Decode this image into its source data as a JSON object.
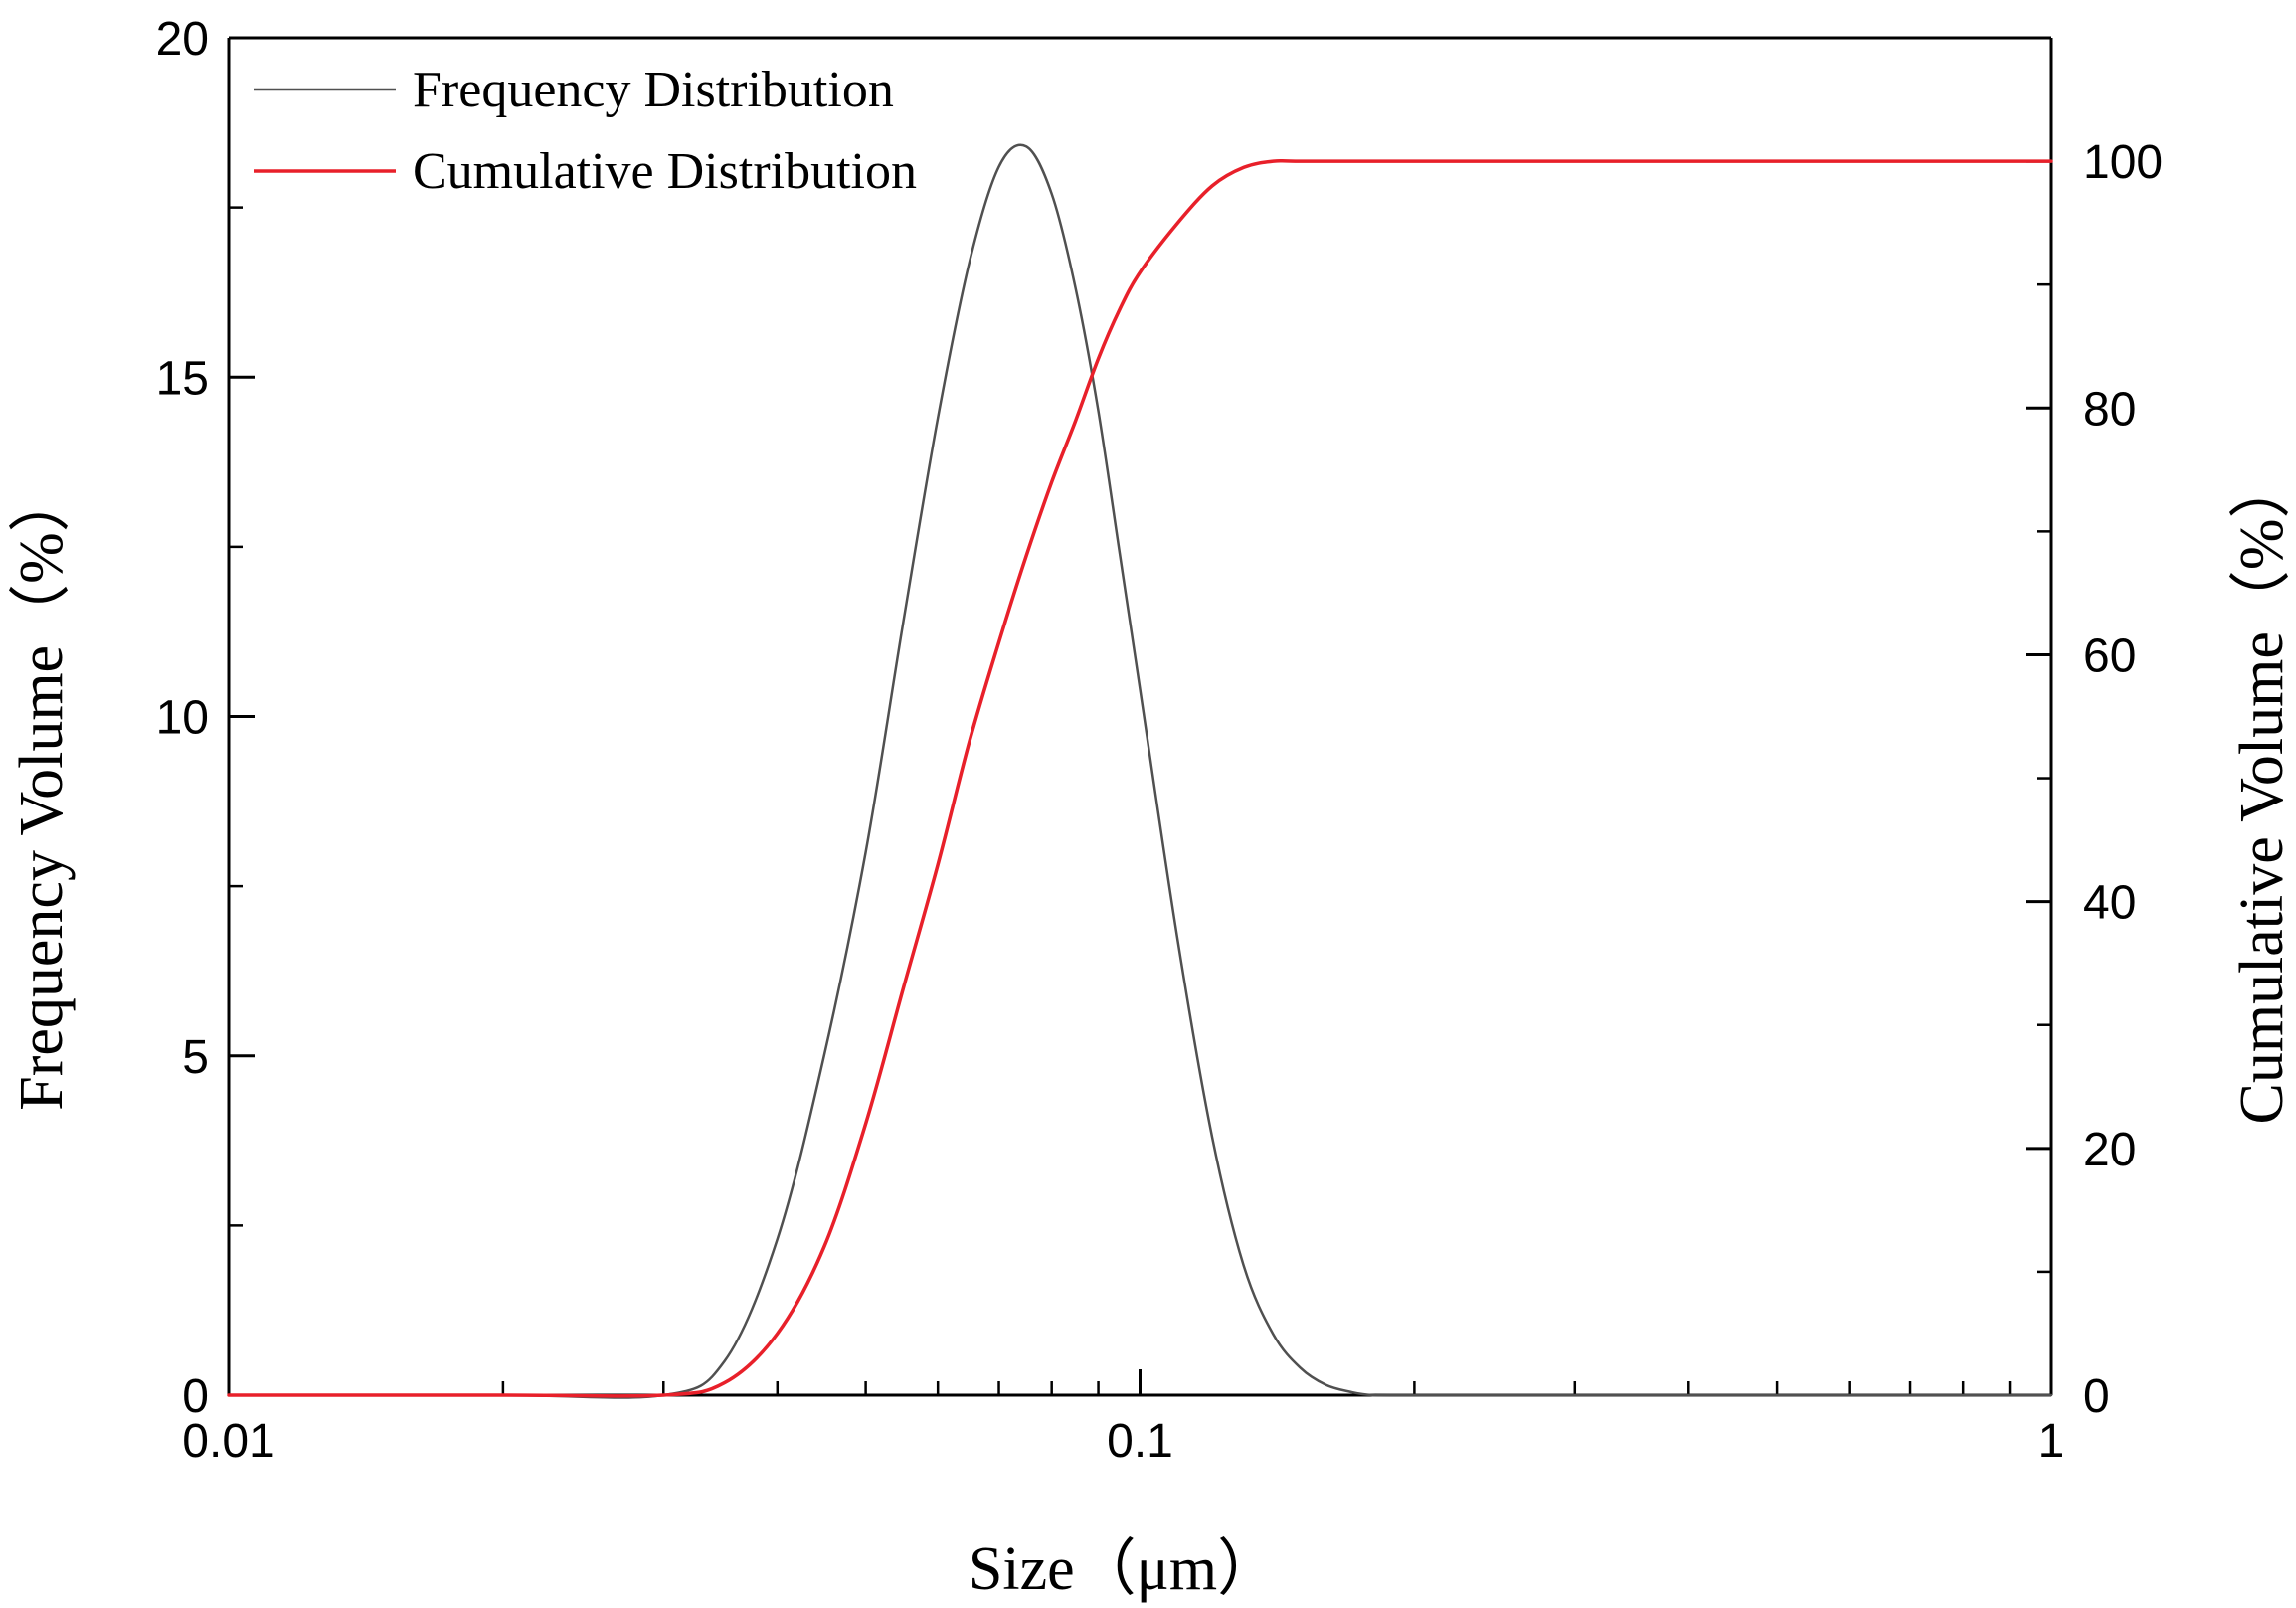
{
  "chart_data": {
    "type": "line",
    "title": "",
    "xlabel": "Size（μm）",
    "ylabel": "Frequency Volume（%）",
    "y2label": "Cumulative Volume（%）",
    "x_scale": "log",
    "xlim": [
      0.01,
      1
    ],
    "ylim": [
      0,
      20
    ],
    "y2lim": [
      0,
      110
    ],
    "x_ticks": [
      "0.01",
      "0.1",
      "1"
    ],
    "y_ticks": [
      "0",
      "5",
      "10",
      "15",
      "20"
    ],
    "y2_ticks": [
      "0",
      "20",
      "40",
      "60",
      "80",
      "100"
    ],
    "grid": false,
    "legend_position": "top-left",
    "series": [
      {
        "name": "Frequency Distribution",
        "axis": "left",
        "color": "#505050",
        "x": [
          0.01,
          0.02,
          0.03,
          0.035,
          0.04,
          0.045,
          0.05,
          0.055,
          0.06,
          0.065,
          0.07,
          0.075,
          0.08,
          0.085,
          0.09,
          0.095,
          0.1,
          0.11,
          0.12,
          0.13,
          0.14,
          0.15,
          0.16,
          0.17,
          0.18,
          0.2,
          0.5,
          1
        ],
        "y": [
          0,
          0,
          0,
          0.5,
          2.3,
          5.0,
          8.0,
          11.4,
          14.4,
          16.7,
          18.1,
          18.4,
          17.7,
          16.3,
          14.5,
          12.4,
          10.4,
          6.7,
          3.8,
          1.9,
          0.9,
          0.4,
          0.15,
          0.05,
          0,
          0,
          0,
          0
        ]
      },
      {
        "name": "Cumulative Distribution",
        "axis": "right",
        "color": "#e8202a",
        "x": [
          0.01,
          0.02,
          0.03,
          0.035,
          0.04,
          0.045,
          0.05,
          0.055,
          0.06,
          0.065,
          0.07,
          0.075,
          0.08,
          0.085,
          0.09,
          0.095,
          0.1,
          0.11,
          0.12,
          0.13,
          0.14,
          0.15,
          0.2,
          0.5,
          1
        ],
        "y": [
          0,
          0,
          0,
          1,
          5,
          12,
          22,
          33,
          43,
          53,
          61,
          68,
          74,
          79,
          84,
          88,
          91,
          95,
          98,
          99.5,
          100,
          100,
          100,
          100,
          100
        ]
      }
    ]
  }
}
